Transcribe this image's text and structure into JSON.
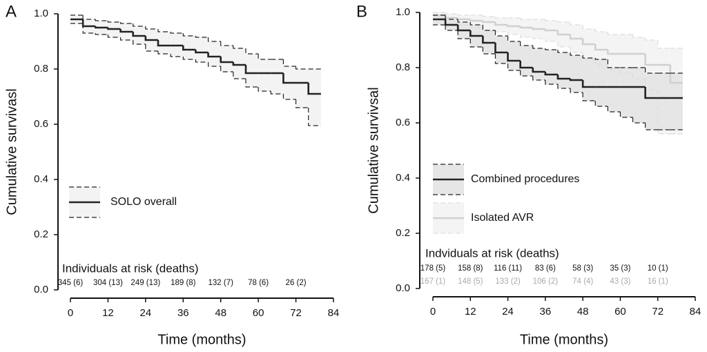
{
  "chart_data": [
    {
      "type": "step",
      "panel_label": "A",
      "xlabel": "Time (months)",
      "ylabel": "Cumulative survivasl",
      "x": [
        0,
        4,
        8,
        12,
        16,
        20,
        24,
        28,
        32,
        36,
        40,
        44,
        48,
        52,
        56,
        60,
        64,
        68,
        72,
        76,
        80
      ],
      "xlim": [
        0,
        84
      ],
      "xticks": [
        0,
        12,
        24,
        36,
        48,
        60,
        72,
        84
      ],
      "ylim": [
        0,
        1
      ],
      "yticks": [
        {
          "value": 0,
          "label": "0.0"
        },
        {
          "value": 0.2,
          "label": "0.2"
        },
        {
          "value": 0.4,
          "label": "0.4"
        },
        {
          "value": 0.6,
          "label": "0.6"
        },
        {
          "value": 0.8,
          "label": "0.8"
        },
        {
          "value": 1,
          "label": "1.0"
        }
      ],
      "series": [
        {
          "name": "SOLO overall",
          "color": "#222222",
          "band_color": "#f3f3f3",
          "ci_color": "#222222",
          "values": [
            0.98,
            0.955,
            0.95,
            0.945,
            0.935,
            0.92,
            0.905,
            0.885,
            0.885,
            0.87,
            0.86,
            0.845,
            0.825,
            0.815,
            0.785,
            0.785,
            0.785,
            0.75,
            0.75,
            0.71,
            0.71
          ],
          "upper": [
            0.995,
            0.98,
            0.975,
            0.97,
            0.965,
            0.955,
            0.945,
            0.935,
            0.93,
            0.92,
            0.915,
            0.9,
            0.885,
            0.875,
            0.855,
            0.835,
            0.835,
            0.81,
            0.8,
            0.8,
            0.8
          ],
          "lower": [
            0.965,
            0.93,
            0.925,
            0.915,
            0.905,
            0.89,
            0.865,
            0.855,
            0.845,
            0.835,
            0.825,
            0.81,
            0.79,
            0.765,
            0.735,
            0.72,
            0.71,
            0.69,
            0.66,
            0.595,
            0.595
          ]
        }
      ],
      "risk_table": {
        "title": "Individuals at risk (deaths)",
        "rows": [
          {
            "color": "#111111",
            "labels": [
              "345 (6)",
              "304 (13)",
              "249 (13)",
              "189 (8)",
              "132 (7)",
              "78 (6)",
              "26 (2)"
            ]
          }
        ]
      }
    },
    {
      "type": "step",
      "panel_label": "B",
      "xlabel": "Time (months)",
      "ylabel": "Cumulative survivsal",
      "x": [
        0,
        4,
        8,
        12,
        16,
        20,
        24,
        28,
        32,
        36,
        40,
        44,
        48,
        52,
        56,
        60,
        64,
        68,
        72,
        76,
        80
      ],
      "xlim": [
        0,
        84
      ],
      "xticks": [
        0,
        12,
        24,
        36,
        48,
        60,
        72,
        84
      ],
      "ylim": [
        0,
        1
      ],
      "yticks": [
        {
          "value": 0,
          "label": "0.0"
        },
        {
          "value": 0.2,
          "label": "0.2"
        },
        {
          "value": 0.4,
          "label": "0.4"
        },
        {
          "value": 0.6,
          "label": "0.6"
        },
        {
          "value": 0.8,
          "label": "0.8"
        },
        {
          "value": 1,
          "label": "1.0"
        }
      ],
      "series": [
        {
          "name": "Isolated AVR",
          "color": "#d0d0d0",
          "band_color": "#f4f4f4",
          "ci_color": "#dddddd",
          "values": [
            0.99,
            0.98,
            0.975,
            0.97,
            0.965,
            0.955,
            0.95,
            0.945,
            0.94,
            0.935,
            0.92,
            0.905,
            0.885,
            0.865,
            0.85,
            0.85,
            0.85,
            0.81,
            0.81,
            0.745,
            0.745
          ],
          "upper": [
            1.0,
            0.995,
            0.99,
            0.99,
            0.985,
            0.98,
            0.98,
            0.975,
            0.975,
            0.97,
            0.965,
            0.955,
            0.94,
            0.93,
            0.92,
            0.92,
            0.91,
            0.9,
            0.87,
            0.87,
            0.87
          ],
          "lower": [
            0.975,
            0.96,
            0.955,
            0.945,
            0.935,
            0.93,
            0.92,
            0.91,
            0.905,
            0.895,
            0.875,
            0.855,
            0.83,
            0.81,
            0.79,
            0.78,
            0.76,
            0.72,
            0.56,
            0.56,
            0.56
          ]
        },
        {
          "name": "Combined procedures",
          "color": "#222222",
          "band_color": "#e6e6e6",
          "ci_color": "#222222",
          "values": [
            0.975,
            0.955,
            0.935,
            0.915,
            0.89,
            0.855,
            0.825,
            0.8,
            0.785,
            0.775,
            0.76,
            0.755,
            0.73,
            0.73,
            0.73,
            0.73,
            0.73,
            0.69,
            0.69,
            0.69,
            0.69
          ],
          "upper": [
            0.99,
            0.975,
            0.965,
            0.955,
            0.935,
            0.915,
            0.895,
            0.88,
            0.87,
            0.865,
            0.855,
            0.845,
            0.835,
            0.83,
            0.8,
            0.8,
            0.8,
            0.78,
            0.78,
            0.78,
            0.78
          ],
          "lower": [
            0.955,
            0.935,
            0.905,
            0.875,
            0.85,
            0.815,
            0.79,
            0.77,
            0.755,
            0.74,
            0.725,
            0.71,
            0.68,
            0.66,
            0.64,
            0.62,
            0.6,
            0.575,
            0.575,
            0.575,
            0.575
          ]
        }
      ],
      "risk_table": {
        "title": "Indviduals at risk (deaths)",
        "rows": [
          {
            "color": "#111111",
            "labels": [
              "178 (5)",
              "158 (8)",
              "116 (11)",
              "83 (6)",
              "58 (3)",
              "35 (3)",
              "10 (1)"
            ]
          },
          {
            "color": "#aaaaaa",
            "labels": [
              "167 (1)",
              "148 (5)",
              "133 (2)",
              "106 (2)",
              "74 (4)",
              "43 (3)",
              "16 (1)"
            ]
          }
        ]
      }
    }
  ]
}
